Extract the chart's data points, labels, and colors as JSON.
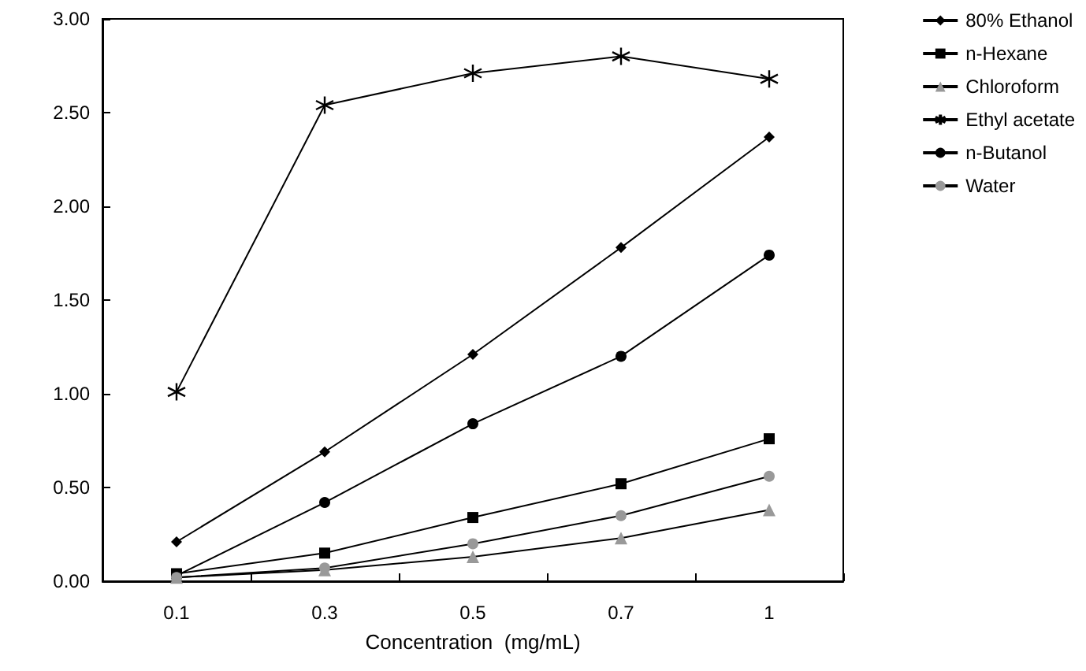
{
  "chart_data": {
    "type": "line",
    "xlabel": "Concentration  (mg/mL)",
    "categories": [
      "0.1",
      "0.3",
      "0.5",
      "0.7",
      "1"
    ],
    "ylim": [
      0,
      3
    ],
    "yticks": [
      {
        "value": 0,
        "label": "0.00"
      },
      {
        "value": 0.5,
        "label": "0.50"
      },
      {
        "value": 1,
        "label": "1.00"
      },
      {
        "value": 1.5,
        "label": "1.50"
      },
      {
        "value": 2,
        "label": "2.00"
      },
      {
        "value": 2.5,
        "label": "2.50"
      },
      {
        "value": 3,
        "label": "3.00"
      }
    ],
    "grid": false,
    "legend": "top right",
    "series": [
      {
        "name": "80% Ethanol",
        "color": "#000000",
        "marker": "diamond",
        "values": [
          0.21,
          0.69,
          1.21,
          1.78,
          2.37
        ]
      },
      {
        "name": "n-Hexane",
        "color": "#000000",
        "marker": "square",
        "values": [
          0.04,
          0.15,
          0.34,
          0.52,
          0.76
        ]
      },
      {
        "name": "Chloroform",
        "color": "#999999",
        "marker": "triangle",
        "values": [
          0.02,
          0.06,
          0.13,
          0.23,
          0.38
        ]
      },
      {
        "name": "Ethyl acetate",
        "color": "#000000",
        "marker": "star",
        "values": [
          1.01,
          2.54,
          2.71,
          2.8,
          2.68
        ]
      },
      {
        "name": "n-Butanol",
        "color": "#000000",
        "marker": "circle",
        "values": [
          0.03,
          0.42,
          0.84,
          1.2,
          1.74
        ]
      },
      {
        "name": "Water",
        "color": "#999999",
        "marker": "circle",
        "values": [
          0.02,
          0.07,
          0.2,
          0.35,
          0.56
        ]
      }
    ]
  }
}
